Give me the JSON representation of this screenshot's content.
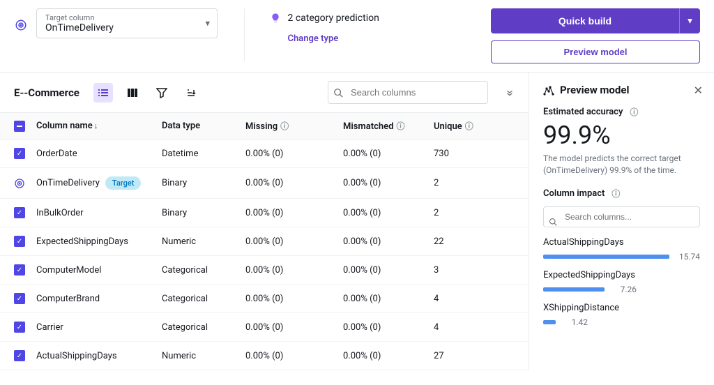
{
  "colors": {
    "primary": "#5f3dc4",
    "accent": "#4f8fef",
    "badge_bg": "#bfe9f4",
    "badge_fg": "#0073bb"
  },
  "target": {
    "label": "Target column",
    "value": "OnTimeDelivery"
  },
  "prediction": {
    "text": "2 category prediction",
    "change": "Change type"
  },
  "buttons": {
    "build": "Quick build",
    "preview": "Preview model"
  },
  "dataset": {
    "name": "E--Commerce"
  },
  "search": {
    "placeholder": "Search columns"
  },
  "headers": {
    "name": "Column name",
    "type": "Data type",
    "missing": "Missing",
    "mismatched": "Mismatched",
    "unique": "Unique"
  },
  "rows": [
    {
      "name": "OrderDate",
      "type": "Datetime",
      "missing": "0.00% (0)",
      "mismatched": "0.00% (0)",
      "unique": "730",
      "target": false
    },
    {
      "name": "OnTimeDelivery",
      "type": "Binary",
      "missing": "0.00% (0)",
      "mismatched": "0.00% (0)",
      "unique": "2",
      "target": true
    },
    {
      "name": "InBulkOrder",
      "type": "Binary",
      "missing": "0.00% (0)",
      "mismatched": "0.00% (0)",
      "unique": "2",
      "target": false
    },
    {
      "name": "ExpectedShippingDays",
      "type": "Numeric",
      "missing": "0.00% (0)",
      "mismatched": "0.00% (0)",
      "unique": "22",
      "target": false
    },
    {
      "name": "ComputerModel",
      "type": "Categorical",
      "missing": "0.00% (0)",
      "mismatched": "0.00% (0)",
      "unique": "3",
      "target": false
    },
    {
      "name": "ComputerBrand",
      "type": "Categorical",
      "missing": "0.00% (0)",
      "mismatched": "0.00% (0)",
      "unique": "4",
      "target": false
    },
    {
      "name": "Carrier",
      "type": "Categorical",
      "missing": "0.00% (0)",
      "mismatched": "0.00% (0)",
      "unique": "4",
      "target": false
    },
    {
      "name": "ActualShippingDays",
      "type": "Numeric",
      "missing": "0.00% (0)",
      "mismatched": "0.00% (0)",
      "unique": "27",
      "target": false
    }
  ],
  "target_badge": "Target",
  "panel": {
    "title": "Preview model",
    "est_label": "Estimated accuracy",
    "pct": "99.9%",
    "desc": "The model predicts the correct target (OnTimeDelivery) 99.9% of the time.",
    "impact_label": "Column impact",
    "search_placeholder": "Search columns...",
    "impacts": [
      {
        "name": "ActualShippingDays",
        "val": "15.74",
        "w": 190
      },
      {
        "name": "ExpectedShippingDays",
        "val": "7.26",
        "w": 88
      },
      {
        "name": "XShippingDistance",
        "val": "1.42",
        "w": 18
      }
    ]
  }
}
